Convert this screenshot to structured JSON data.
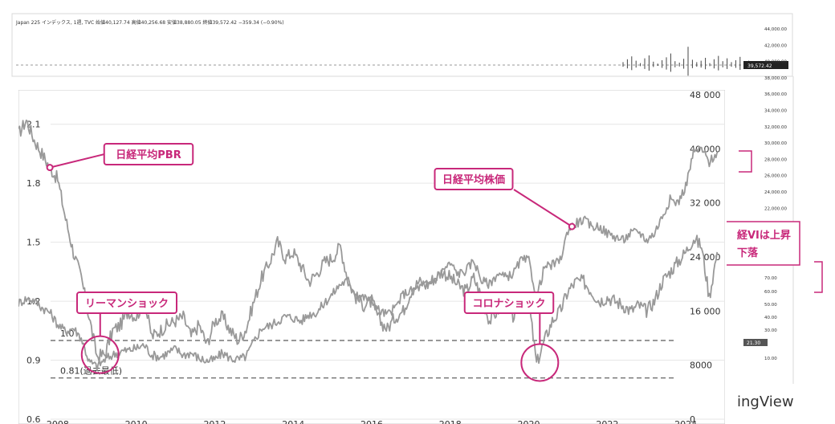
{
  "background": {
    "header": "Japan 225 インデックス, 1週, TVC  始値40,127.74  高値40,256.68  安値38,880.05  終値39,572.42  −359.34 (−0.90%)",
    "price_label": "39,572.42",
    "scale_labels": [
      "44,000.00",
      "42,000.00",
      "40,000.00",
      "38,000.00",
      "36,000.00",
      "34,000.00",
      "32,000.00",
      "30,000.00",
      "28,000.00",
      "26,000.00",
      "24,000.00",
      "22,000.00"
    ],
    "lower_scale_labels": [
      "70.00",
      "60.00",
      "50.00",
      "40.00",
      "30.00",
      "10.00"
    ],
    "lower_price_label": "21.30",
    "fragment_1": "経VIは上昇",
    "fragment_2": "下落",
    "watermark": "ingView"
  },
  "chart_data": {
    "type": "line",
    "x_ticks": [
      "2008",
      "2010",
      "2012",
      "2014",
      "2016",
      "2018",
      "2020",
      "2022",
      "2024"
    ],
    "left_axis": {
      "ticks": [
        "2.1",
        "1.8",
        "1.5",
        "1.2",
        "0.9",
        "0.6"
      ],
      "ylim": [
        0.6,
        2.25
      ]
    },
    "right_axis": {
      "ticks": [
        "48 000",
        "40 000",
        "32 000",
        "24 000",
        "16 000",
        "8000",
        "0"
      ],
      "ylim": [
        0,
        48000
      ]
    },
    "series": [
      {
        "name": "日経平均PBR",
        "axis": "left",
        "x": [
          2007.0,
          2007.2,
          2007.4,
          2007.6,
          2007.8,
          2008.0,
          2008.2,
          2008.4,
          2008.6,
          2008.8,
          2009.0,
          2009.2,
          2009.4,
          2009.6,
          2009.8,
          2010.0,
          2010.2,
          2010.4,
          2010.6,
          2010.8,
          2011.0,
          2011.2,
          2011.4,
          2011.6,
          2011.8,
          2012.0,
          2012.2,
          2012.4,
          2012.6,
          2012.8,
          2013.0,
          2013.2,
          2013.4,
          2013.6,
          2013.8,
          2014.0,
          2014.2,
          2014.4,
          2014.6,
          2014.8,
          2015.0,
          2015.2,
          2015.4,
          2015.6,
          2015.8,
          2016.0,
          2016.2,
          2016.4,
          2016.6,
          2016.8,
          2017.0,
          2017.2,
          2017.4,
          2017.6,
          2017.8,
          2018.0,
          2018.2,
          2018.4,
          2018.6,
          2018.8,
          2019.0,
          2019.2,
          2019.4,
          2019.6,
          2019.8,
          2020.0,
          2020.2,
          2020.4,
          2020.6,
          2020.8,
          2021.0,
          2021.2,
          2021.4,
          2021.6,
          2021.8,
          2022.0,
          2022.2,
          2022.4,
          2022.6,
          2022.8,
          2023.0,
          2023.2,
          2023.4,
          2023.6,
          2023.8,
          2024.0,
          2024.2,
          2024.4,
          2024.6,
          2024.8
        ],
        "values": [
          2.05,
          2.12,
          2.02,
          1.95,
          1.88,
          1.82,
          1.62,
          1.45,
          1.32,
          1.12,
          0.92,
          0.93,
          1.05,
          1.08,
          1.15,
          1.12,
          1.2,
          1.02,
          1.05,
          1.08,
          1.1,
          1.12,
          1.02,
          1.08,
          0.98,
          1.1,
          1.12,
          1.05,
          1.0,
          1.06,
          1.2,
          1.32,
          1.4,
          1.5,
          1.42,
          1.45,
          1.38,
          1.3,
          1.34,
          1.4,
          1.42,
          1.48,
          1.3,
          1.22,
          1.18,
          1.2,
          1.1,
          1.06,
          1.12,
          1.15,
          1.25,
          1.3,
          1.28,
          1.32,
          1.35,
          1.32,
          1.28,
          1.25,
          1.32,
          1.22,
          1.1,
          1.15,
          1.2,
          1.12,
          1.18,
          1.2,
          0.88,
          1.0,
          1.1,
          1.15,
          1.25,
          1.3,
          1.3,
          1.25,
          1.2,
          1.22,
          1.2,
          1.18,
          1.15,
          1.18,
          1.15,
          1.2,
          1.3,
          1.35,
          1.4,
          1.45,
          1.52,
          1.48,
          1.22,
          1.45
        ]
      },
      {
        "name": "日経平均株価",
        "axis": "right",
        "x": [
          2007.0,
          2007.2,
          2007.4,
          2007.6,
          2007.8,
          2008.0,
          2008.2,
          2008.4,
          2008.6,
          2008.8,
          2009.0,
          2009.2,
          2009.4,
          2009.6,
          2009.8,
          2010.0,
          2010.2,
          2010.4,
          2010.6,
          2010.8,
          2011.0,
          2011.2,
          2011.4,
          2011.6,
          2011.8,
          2012.0,
          2012.2,
          2012.4,
          2012.6,
          2012.8,
          2013.0,
          2013.2,
          2013.4,
          2013.6,
          2013.8,
          2014.0,
          2014.2,
          2014.4,
          2014.6,
          2014.8,
          2015.0,
          2015.2,
          2015.4,
          2015.6,
          2015.8,
          2016.0,
          2016.2,
          2016.4,
          2016.6,
          2016.8,
          2017.0,
          2017.2,
          2017.4,
          2017.6,
          2017.8,
          2018.0,
          2018.2,
          2018.4,
          2018.6,
          2018.8,
          2019.0,
          2019.2,
          2019.4,
          2019.6,
          2019.8,
          2020.0,
          2020.2,
          2020.4,
          2020.6,
          2020.8,
          2021.0,
          2021.2,
          2021.4,
          2021.6,
          2021.8,
          2022.0,
          2022.2,
          2022.4,
          2022.6,
          2022.8,
          2023.0,
          2023.2,
          2023.4,
          2023.6,
          2023.8,
          2024.0,
          2024.2,
          2024.4,
          2024.6,
          2024.8
        ],
        "values": [
          17200,
          17800,
          17600,
          16500,
          15800,
          14000,
          13000,
          13500,
          12000,
          8500,
          7800,
          8800,
          9500,
          10000,
          10200,
          10500,
          11000,
          9500,
          9200,
          9800,
          10400,
          9500,
          9800,
          9000,
          8600,
          8800,
          9800,
          9000,
          8800,
          9300,
          11500,
          13500,
          13800,
          14500,
          15200,
          15000,
          14500,
          15500,
          15800,
          17200,
          18500,
          20000,
          20500,
          18500,
          18000,
          17500,
          16000,
          15500,
          16500,
          18500,
          19000,
          19500,
          20000,
          20500,
          22000,
          23000,
          21500,
          22000,
          23500,
          20500,
          20000,
          21500,
          21000,
          21500,
          23500,
          23500,
          18000,
          22500,
          22800,
          23500,
          28000,
          29000,
          29500,
          28500,
          28500,
          27500,
          27000,
          26500,
          27500,
          27800,
          26500,
          27500,
          30000,
          32500,
          32000,
          34500,
          39500,
          40000,
          38000,
          39500
        ]
      }
    ],
    "reference_lines": [
      {
        "value": 1.0,
        "label": "1.0"
      },
      {
        "value": 0.81,
        "label": "0.81(過去最低)"
      }
    ],
    "annotations": [
      {
        "label": "日経平均PBR",
        "point": {
          "x": 2007.8,
          "y": 1.88,
          "axis": "left"
        }
      },
      {
        "label": "日経平均株価",
        "point": {
          "x": 2021.1,
          "y": 28500,
          "axis": "right"
        }
      },
      {
        "label": "リーマンショック",
        "circle": {
          "x": 2009.0,
          "y": 0.92,
          "axis": "left"
        }
      },
      {
        "label": "コロナショック",
        "circle": {
          "x": 2020.2,
          "y": 0.88,
          "axis": "left"
        }
      }
    ],
    "colors": {
      "accent": "#c8287a",
      "series": "#999999",
      "ref_line": "#777777",
      "grid": "#e6e6e6"
    }
  }
}
